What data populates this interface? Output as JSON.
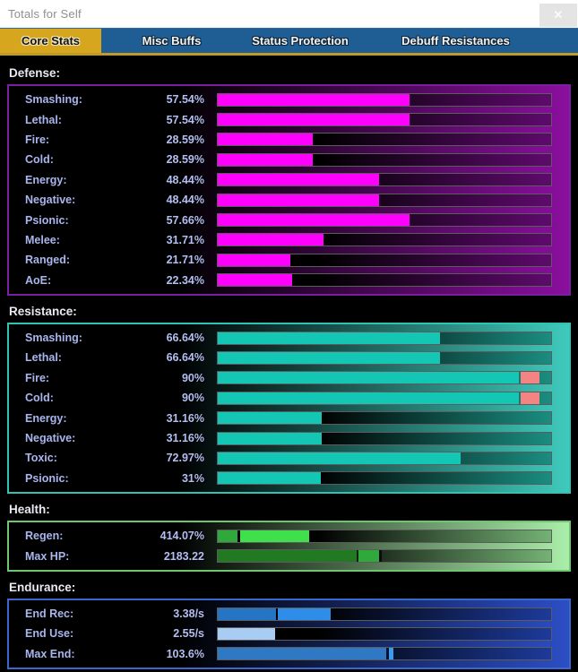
{
  "window": {
    "title": "Totals for Self",
    "close_glyph": "✕"
  },
  "tab_bar": {
    "background_color": "#1f5e94",
    "active_tab_color": "#d7a61f",
    "underline_color": "#c09a28",
    "tabs": [
      {
        "label": "Core Stats",
        "active": true
      },
      {
        "label": "Misc Buffs",
        "active": false
      },
      {
        "label": "Status Protection",
        "active": false
      },
      {
        "label": "Debuff Resistances",
        "active": false
      }
    ]
  },
  "bar_scale_note": "segment from/to values are percent of bar track width",
  "sections": [
    {
      "id": "defense",
      "header": "Defense:",
      "border_color": "#7b1fa2",
      "box_gradient_right": "#8a0f9e",
      "track_gradient_right": "#5e0a6c",
      "rows": [
        {
          "label": "Smashing:",
          "value": "57.54%",
          "numeric": 57.54,
          "segments": [
            {
              "from": 0,
              "to": 57.54,
              "color": "#ff00ff"
            }
          ]
        },
        {
          "label": "Lethal:",
          "value": "57.54%",
          "numeric": 57.54,
          "segments": [
            {
              "from": 0,
              "to": 57.54,
              "color": "#ff00ff"
            }
          ]
        },
        {
          "label": "Fire:",
          "value": "28.59%",
          "numeric": 28.59,
          "segments": [
            {
              "from": 0,
              "to": 28.59,
              "color": "#ff00ff"
            }
          ]
        },
        {
          "label": "Cold:",
          "value": "28.59%",
          "numeric": 28.59,
          "segments": [
            {
              "from": 0,
              "to": 28.59,
              "color": "#ff00ff"
            }
          ]
        },
        {
          "label": "Energy:",
          "value": "48.44%",
          "numeric": 48.44,
          "segments": [
            {
              "from": 0,
              "to": 48.44,
              "color": "#ff00ff"
            }
          ]
        },
        {
          "label": "Negative:",
          "value": "48.44%",
          "numeric": 48.44,
          "segments": [
            {
              "from": 0,
              "to": 48.44,
              "color": "#ff00ff"
            }
          ]
        },
        {
          "label": "Psionic:",
          "value": "57.66%",
          "numeric": 57.66,
          "segments": [
            {
              "from": 0,
              "to": 57.66,
              "color": "#ff00ff"
            }
          ]
        },
        {
          "label": "Melee:",
          "value": "31.71%",
          "numeric": 31.71,
          "segments": [
            {
              "from": 0,
              "to": 31.71,
              "color": "#ff00ff"
            }
          ]
        },
        {
          "label": "Ranged:",
          "value": "21.71%",
          "numeric": 21.71,
          "segments": [
            {
              "from": 0,
              "to": 21.71,
              "color": "#ff00ff"
            }
          ]
        },
        {
          "label": "AoE:",
          "value": "22.34%",
          "numeric": 22.34,
          "segments": [
            {
              "from": 0,
              "to": 22.34,
              "color": "#ff00ff"
            }
          ]
        }
      ]
    },
    {
      "id": "resistance",
      "header": "Resistance:",
      "border_color": "#2ec4b4",
      "box_gradient_right": "#3fcabc",
      "track_gradient_right": "#1a8d80",
      "rows": [
        {
          "label": "Smashing:",
          "value": "66.64%",
          "numeric": 66.64,
          "segments": [
            {
              "from": 0,
              "to": 66.64,
              "color": "#14c6b4"
            }
          ]
        },
        {
          "label": "Lethal:",
          "value": "66.64%",
          "numeric": 66.64,
          "segments": [
            {
              "from": 0,
              "to": 66.64,
              "color": "#14c6b4"
            }
          ]
        },
        {
          "label": "Fire:",
          "value": "90%",
          "numeric": 90,
          "segments": [
            {
              "from": 0,
              "to": 90.3,
              "color": "#14c6b4"
            },
            {
              "from": 90.9,
              "to": 96.4,
              "color": "#f48484"
            }
          ]
        },
        {
          "label": "Cold:",
          "value": "90%",
          "numeric": 90,
          "segments": [
            {
              "from": 0,
              "to": 90.3,
              "color": "#14c6b4"
            },
            {
              "from": 90.9,
              "to": 96.4,
              "color": "#f48484"
            }
          ]
        },
        {
          "label": "Energy:",
          "value": "31.16%",
          "numeric": 31.16,
          "segments": [
            {
              "from": 0,
              "to": 31.16,
              "color": "#14c6b4"
            }
          ]
        },
        {
          "label": "Negative:",
          "value": "31.16%",
          "numeric": 31.16,
          "segments": [
            {
              "from": 0,
              "to": 31.16,
              "color": "#14c6b4"
            }
          ]
        },
        {
          "label": "Toxic:",
          "value": "72.97%",
          "numeric": 72.97,
          "segments": [
            {
              "from": 0,
              "to": 72.97,
              "color": "#14c6b4"
            }
          ]
        },
        {
          "label": "Psionic:",
          "value": "31%",
          "numeric": 31,
          "segments": [
            {
              "from": 0,
              "to": 31,
              "color": "#14c6b4"
            }
          ]
        }
      ]
    },
    {
      "id": "health",
      "header": "Health:",
      "border_color": "#6ec76e",
      "box_gradient_right": "#aaeeaa",
      "track_gradient_right": "#74b274",
      "rows": [
        {
          "label": "Regen:",
          "value": "414.07%",
          "numeric": 414.07,
          "segments": [
            {
              "from": 0,
              "to": 5.9,
              "color": "#2fa83c"
            },
            {
              "from": 6.7,
              "to": 27.4,
              "color": "#3fe04c"
            }
          ]
        },
        {
          "label": "Max HP:",
          "value": "2183.22",
          "numeric": 2183.22,
          "segments": [
            {
              "from": 0,
              "to": 41.6,
              "color": "#217a21"
            },
            {
              "from": 42.2,
              "to": 48.4,
              "color": "#2fa83c"
            },
            {
              "from": 48.4,
              "to": 49.3,
              "color": "#0a0a0a"
            }
          ]
        }
      ]
    },
    {
      "id": "endurance",
      "header": "Endurance:",
      "border_color": "#3a68ce",
      "box_gradient_right": "#2c4ec4",
      "track_gradient_right": "#1c3a9a",
      "rows": [
        {
          "label": "End Rec:",
          "value": "3.38/s",
          "numeric": 3.38,
          "segments": [
            {
              "from": 0,
              "to": 17.4,
              "color": "#2674c4"
            },
            {
              "from": 18.1,
              "to": 34,
              "color": "#2e8de8"
            }
          ]
        },
        {
          "label": "End Use:",
          "value": "2.55/s",
          "numeric": 2.55,
          "segments": [
            {
              "from": 0,
              "to": 17.3,
              "color": "#a9ccf2"
            }
          ]
        },
        {
          "label": "Max End:",
          "value": "103.6%",
          "numeric": 103.6,
          "segments": [
            {
              "from": 0,
              "to": 50.5,
              "color": "#2e78c4"
            },
            {
              "from": 51.3,
              "to": 52.6,
              "color": "#3d9bee"
            }
          ]
        }
      ]
    }
  ]
}
